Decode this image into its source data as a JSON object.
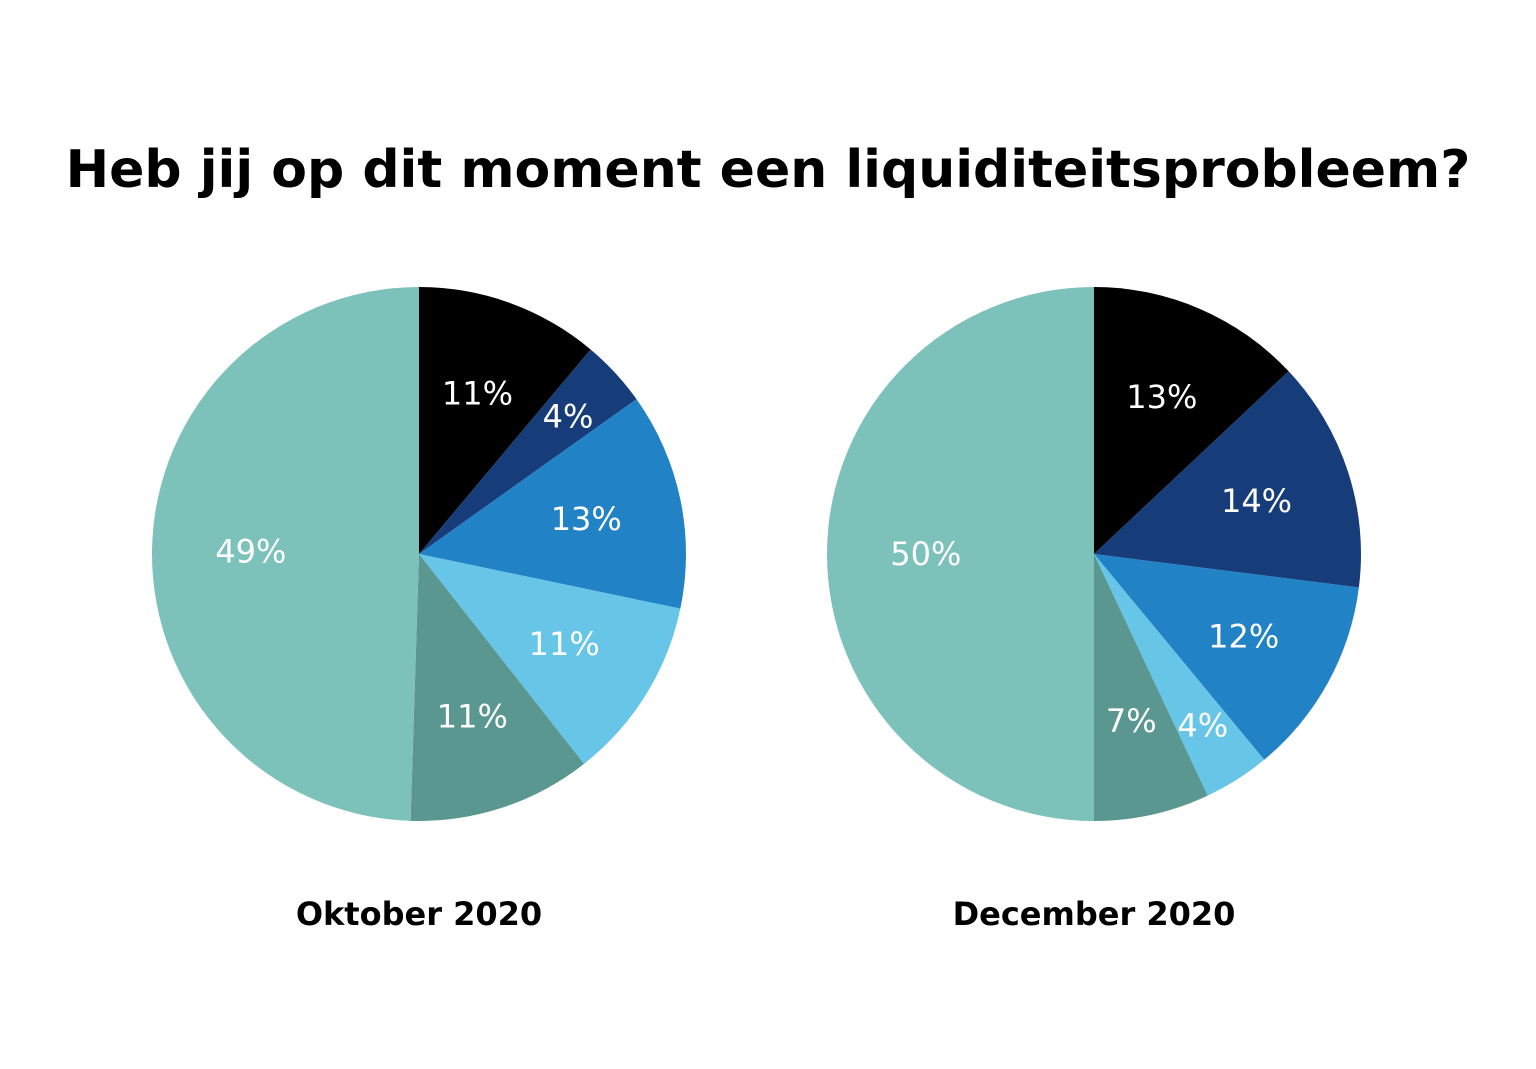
{
  "title": "Heb jij op dit moment een liquiditeitsprobleem?",
  "chart_data": [
    {
      "type": "pie",
      "title": "Oktober 2020",
      "start_angle": "12 o'clock",
      "direction": "clockwise",
      "slices": [
        {
          "label": "11%",
          "value": 11,
          "color": "#000000"
        },
        {
          "label": "4%",
          "value": 4,
          "color": "#163d7a"
        },
        {
          "label": "13%",
          "value": 13,
          "color": "#2282c6"
        },
        {
          "label": "11%",
          "value": 11,
          "color": "#67c6e8"
        },
        {
          "label": "11%",
          "value": 11,
          "color": "#5a9791"
        },
        {
          "label": "49%",
          "value": 49,
          "color": "#7cc1ba"
        }
      ]
    },
    {
      "type": "pie",
      "title": "December 2020",
      "start_angle": "12 o'clock",
      "direction": "clockwise",
      "slices": [
        {
          "label": "13%",
          "value": 13,
          "color": "#000000"
        },
        {
          "label": "14%",
          "value": 14,
          "color": "#163d7a"
        },
        {
          "label": "12%",
          "value": 12,
          "color": "#2282c6"
        },
        {
          "label": "4%",
          "value": 4,
          "color": "#67c6e8"
        },
        {
          "label": "7%",
          "value": 7,
          "color": "#5a9791"
        },
        {
          "label": "50%",
          "value": 50,
          "color": "#7cc1ba"
        }
      ]
    }
  ]
}
